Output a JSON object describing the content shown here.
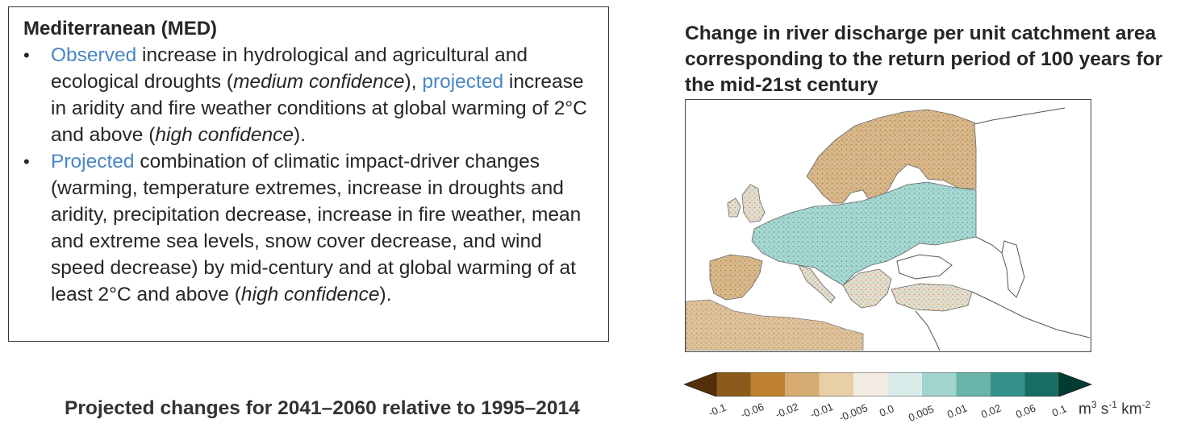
{
  "panel": {
    "title": "Mediterranean (MED)",
    "bullet_1": {
      "s1": "Observed",
      "s2": " increase in hydrological and agricultural and ecological droughts (",
      "s3": "medium confidence",
      "s4": "), ",
      "s5": "projected",
      "s6": " increase in aridity and fire weather conditions at global warming of 2°C and above (",
      "s7": "high confidence",
      "s8": ")."
    },
    "bullet_2": {
      "s1": "Projected",
      "s2": " combination of climatic impact-driver changes (warming, temperature extremes, increase in droughts and aridity, precipitation decrease, increase in fire weather, mean and extreme sea levels, snow cover decrease, and wind speed decrease) by mid-century and at global warming of at least 2°C and above (",
      "s3": "high confidence",
      "s4": ")."
    }
  },
  "footer": "Projected changes for 2041–2060 relative to 1995–2014",
  "map": {
    "title": "Change in river discharge per unit catchment area corresponding to the return period of 100 years for the mid-21st century",
    "colors": {
      "dry": "#c9a06a",
      "wet": "#8fcac3",
      "coast": "#555555"
    }
  },
  "colorbar": {
    "ticks": [
      "-0.1",
      "-0.06",
      "-0.02",
      "-0.01",
      "-0.005",
      "0.0",
      "0.005",
      "0.01",
      "0.02",
      "0.06",
      "0.1"
    ],
    "colors": [
      "#54300a",
      "#8c5b1b",
      "#bf8130",
      "#d6ac72",
      "#e9cfa7",
      "#f3ece3",
      "#d9ece9",
      "#a2d4ce",
      "#69b5ac",
      "#35928a",
      "#166e62",
      "#003c30"
    ],
    "unit_base": "m",
    "unit_sup1": "3",
    "unit_mid": " s",
    "unit_sup2": "-1",
    "unit_mid2": " km",
    "unit_sup3": "-2"
  }
}
